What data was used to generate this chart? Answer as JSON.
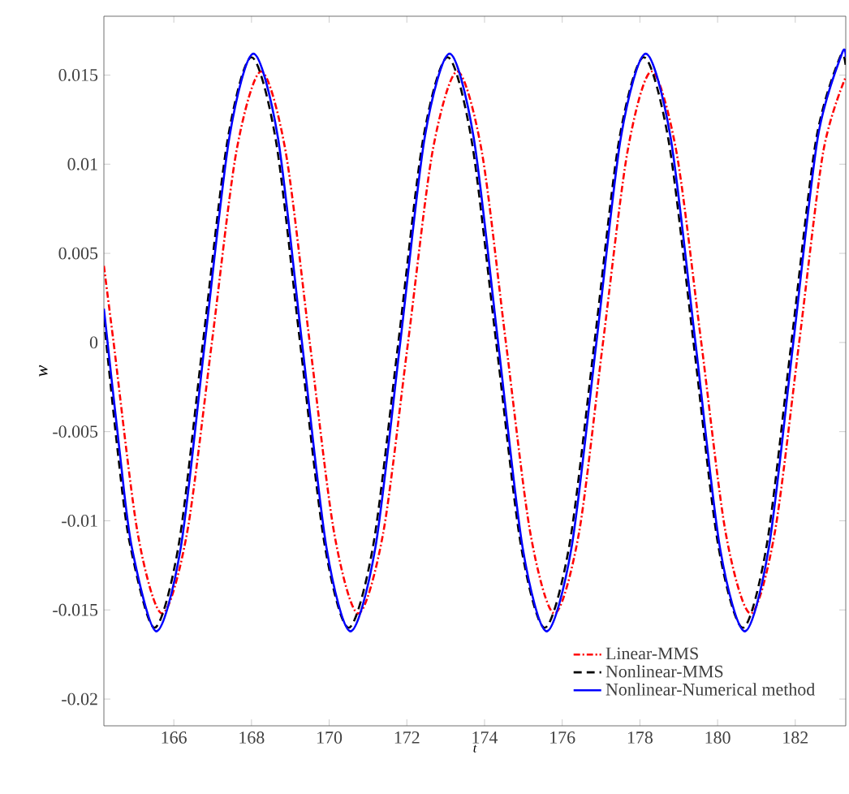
{
  "chart_data": {
    "type": "line",
    "xlabel": "t",
    "ylabel": "w",
    "xlim": [
      164.2,
      183.3
    ],
    "ylim": [
      -0.0215,
      0.0183
    ],
    "xticks": [
      166,
      168,
      170,
      172,
      174,
      176,
      178,
      180,
      182
    ],
    "yticks": [
      -0.02,
      -0.015,
      -0.01,
      -0.005,
      0,
      0.005,
      0.01,
      0.015
    ],
    "grid": false,
    "legend": "bottom right",
    "marker": "none",
    "series": [
      {
        "name": "Linear-MMS",
        "color": "#ff0000",
        "line_style": "dashdot",
        "x": [
          164.2,
          164.45,
          165.07,
          165.7,
          166.34,
          166.98,
          167.61,
          168.25,
          168.88,
          169.5,
          170.13,
          170.75,
          171.39,
          172.03,
          172.66,
          173.3,
          173.93,
          174.55,
          175.18,
          175.8,
          176.43,
          177.05,
          177.68,
          178.3,
          178.94,
          179.58,
          180.21,
          180.85,
          181.47,
          182.1,
          182.72,
          183.3
        ],
        "values": [
          0.0043,
          0,
          -0.0107,
          -0.0152,
          -0.0107,
          0,
          0.0107,
          0.0152,
          0.0107,
          0,
          -0.0107,
          -0.0152,
          -0.0107,
          0,
          0.0107,
          0.0152,
          0.0107,
          0,
          -0.0107,
          -0.0152,
          -0.0107,
          0,
          0.0107,
          0.0152,
          0.0107,
          0,
          -0.0107,
          -0.0152,
          -0.0107,
          0,
          0.0107,
          0.0149
        ]
      },
      {
        "name": "Nonlinear-MMS",
        "color": "#000000",
        "line_style": "dashed",
        "x": [
          164.2,
          164.55,
          164.87,
          165.5,
          166.13,
          166.75,
          167.38,
          168.0,
          168.63,
          169.25,
          169.88,
          170.5,
          171.14,
          171.78,
          172.41,
          173.05,
          173.67,
          174.3,
          174.93,
          175.55,
          176.19,
          176.83,
          177.46,
          178.1,
          178.74,
          179.38,
          180.01,
          180.65,
          181.27,
          181.9,
          182.53,
          183.15,
          183.3
        ],
        "values": [
          0.0013,
          -0.006,
          -0.0113,
          -0.016,
          -0.0113,
          0,
          0.0113,
          0.016,
          0.0113,
          0,
          -0.0113,
          -0.016,
          -0.0113,
          0,
          0.0113,
          0.016,
          0.0113,
          0,
          -0.0113,
          -0.016,
          -0.0113,
          0,
          0.0113,
          0.016,
          0.0113,
          0,
          -0.0113,
          -0.016,
          -0.0113,
          0,
          0.0113,
          0.016,
          0.0155
        ]
      },
      {
        "name": "Nonlinear-Numerical method",
        "color": "#0000ff",
        "line_style": "solid",
        "x": [
          164.2,
          164.6,
          164.92,
          165.55,
          166.18,
          166.8,
          167.43,
          168.05,
          168.68,
          169.3,
          169.93,
          170.55,
          171.19,
          171.83,
          172.46,
          173.1,
          173.72,
          174.35,
          174.98,
          175.6,
          176.24,
          176.88,
          177.51,
          178.15,
          178.79,
          179.43,
          180.06,
          180.7,
          181.32,
          181.95,
          182.58,
          183.2,
          183.3
        ],
        "values": [
          0.0019,
          -0.006,
          -0.0115,
          -0.0162,
          -0.0115,
          0,
          0.0115,
          0.0162,
          0.0115,
          0,
          -0.0115,
          -0.0162,
          -0.0115,
          0,
          0.0115,
          0.0162,
          0.0115,
          0,
          -0.0115,
          -0.0162,
          -0.0115,
          0,
          0.0115,
          0.0162,
          0.0115,
          0,
          -0.0115,
          -0.0162,
          -0.0115,
          0,
          0.0115,
          0.0162,
          0.016
        ]
      }
    ]
  }
}
